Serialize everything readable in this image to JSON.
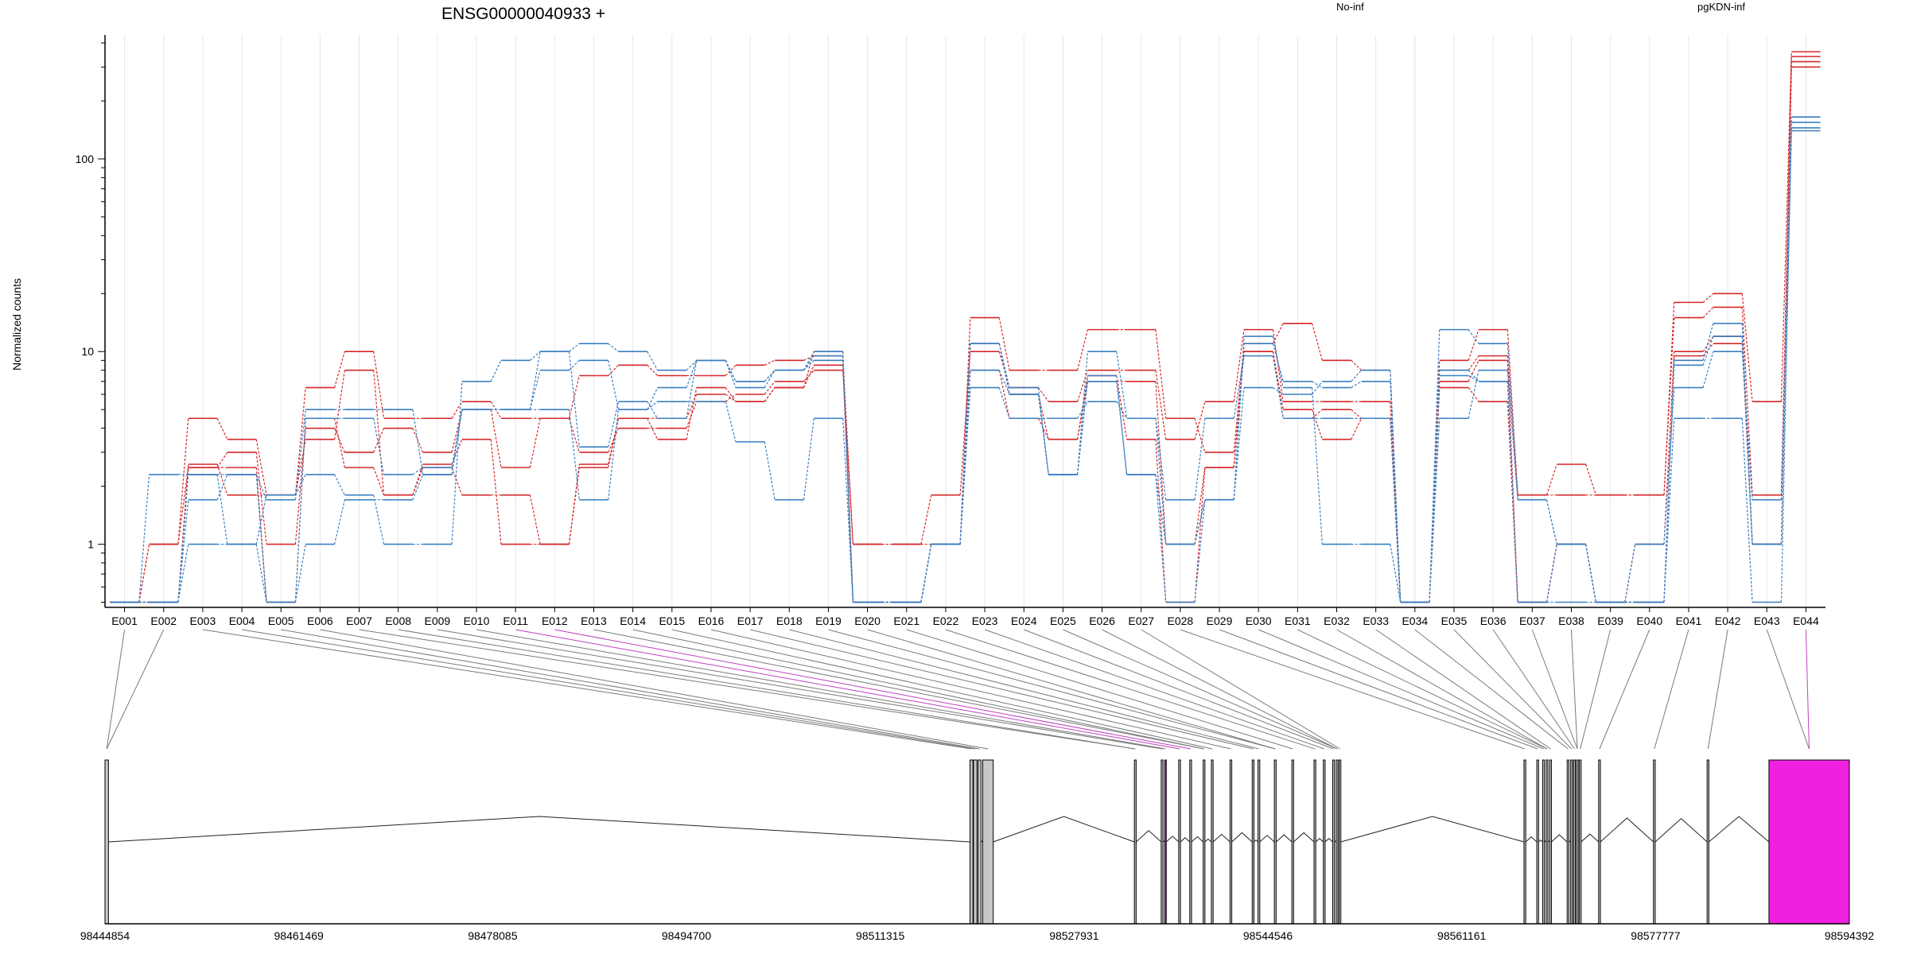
{
  "chart_data": {
    "type": "line",
    "title": "ENSG00000040933 +",
    "ylabel": "Normalized counts",
    "yscale": "log",
    "ylim": [
      0.47,
      440
    ],
    "y_ticks": [
      1,
      10,
      100
    ],
    "categories": [
      "E001",
      "E002",
      "E003",
      "E004",
      "E005",
      "E006",
      "E007",
      "E008",
      "E009",
      "E010",
      "E011",
      "E012",
      "E013",
      "E014",
      "E015",
      "E016",
      "E017",
      "E018",
      "E019",
      "E020",
      "E021",
      "E022",
      "E023",
      "E024",
      "E025",
      "E026",
      "E027",
      "E028",
      "E029",
      "E030",
      "E031",
      "E032",
      "E033",
      "E034",
      "E035",
      "E036",
      "E037",
      "E038",
      "E039",
      "E040",
      "E041",
      "E042",
      "E043",
      "E044"
    ],
    "legend": [
      {
        "label": "No-inf",
        "color": "#d62728"
      },
      {
        "label": "pgKDN-inf",
        "color": "#3a7fc1"
      }
    ],
    "series": [
      {
        "group": "No-inf",
        "color": "#d62728",
        "values": [
          0.5,
          1.0,
          2.5,
          3.0,
          1.0,
          4.0,
          3.0,
          4.0,
          3.0,
          5.0,
          2.5,
          4.5,
          3.0,
          4.0,
          4.0,
          5.5,
          6.0,
          7.0,
          8.0,
          1.0,
          1.0,
          1.0,
          15.0,
          8.0,
          8.0,
          13.0,
          13.0,
          4.5,
          3.0,
          11.0,
          14.0,
          9.0,
          8.0,
          0.5,
          9.0,
          13.0,
          1.8,
          1.8,
          1.8,
          1.8,
          18.0,
          20.0,
          5.5,
          360
        ]
      },
      {
        "group": "No-inf",
        "color": "#d62728",
        "values": [
          0.5,
          1.0,
          4.5,
          3.5,
          1.8,
          6.5,
          10.0,
          4.5,
          4.5,
          5.5,
          4.5,
          4.5,
          7.5,
          8.5,
          7.5,
          7.5,
          8.5,
          9.0,
          9.5,
          1.0,
          1.0,
          1.8,
          10.0,
          6.5,
          5.5,
          8.0,
          8.0,
          3.5,
          5.5,
          13.0,
          5.5,
          5.5,
          5.5,
          0.5,
          8.0,
          9.5,
          1.8,
          2.6,
          1.8,
          1.8,
          15.0,
          17.0,
          1.8,
          340
        ]
      },
      {
        "group": "No-inf",
        "color": "#d62728",
        "values": [
          0.5,
          0.5,
          2.6,
          1.8,
          1.8,
          3.5,
          8.0,
          1.8,
          2.6,
          3.5,
          1.0,
          1.0,
          2.5,
          4.5,
          3.5,
          6.5,
          5.5,
          6.5,
          8.5,
          0.5,
          0.5,
          1.0,
          8.0,
          4.5,
          3.5,
          7.5,
          3.5,
          0.5,
          2.5,
          10.0,
          5.0,
          3.5,
          4.5,
          0.5,
          6.5,
          5.5,
          0.5,
          1.0,
          0.5,
          1.0,
          10.0,
          12.0,
          1.0,
          320
        ]
      },
      {
        "group": "No-inf",
        "color": "#d62728",
        "values": [
          0.5,
          0.5,
          2.5,
          2.5,
          0.5,
          4.5,
          2.5,
          1.8,
          2.5,
          1.8,
          1.8,
          1.0,
          2.6,
          4.5,
          4.5,
          6.0,
          5.5,
          6.5,
          10.0,
          0.5,
          0.5,
          1.0,
          11.0,
          6.0,
          3.5,
          7.0,
          7.0,
          1.0,
          2.5,
          10.0,
          4.5,
          5.0,
          4.5,
          0.5,
          7.0,
          9.0,
          0.5,
          1.0,
          0.5,
          0.5,
          9.5,
          11.0,
          1.0,
          300
        ]
      },
      {
        "group": "pgKDN-inf",
        "color": "#3a7fc1",
        "values": [
          0.5,
          2.3,
          2.3,
          1.0,
          1.8,
          2.3,
          1.8,
          1.0,
          1.0,
          7.0,
          9.0,
          10.0,
          11.0,
          10.0,
          8.0,
          9.0,
          7.0,
          8.0,
          10.0,
          0.5,
          0.5,
          1.0,
          11.0,
          6.0,
          2.3,
          10.0,
          4.5,
          1.0,
          1.7,
          12.0,
          6.5,
          1.0,
          1.0,
          0.5,
          13.0,
          11.0,
          1.7,
          1.0,
          0.5,
          1.0,
          6.5,
          10.0,
          1.7,
          165
        ]
      },
      {
        "group": "pgKDN-inf",
        "color": "#3a7fc1",
        "values": [
          0.5,
          0.5,
          1.0,
          1.0,
          0.5,
          1.0,
          1.7,
          1.7,
          2.3,
          5.0,
          5.0,
          5.0,
          1.7,
          5.0,
          5.5,
          5.5,
          3.4,
          1.7,
          4.5,
          0.5,
          0.5,
          1.0,
          6.5,
          4.5,
          4.5,
          5.5,
          4.5,
          1.7,
          4.5,
          9.5,
          4.5,
          4.5,
          4.5,
          0.5,
          4.5,
          8.0,
          1.7,
          1.0,
          0.5,
          0.5,
          4.5,
          4.5,
          0.5,
          155
        ]
      },
      {
        "group": "pgKDN-inf",
        "color": "#3a7fc1",
        "values": [
          0.5,
          0.5,
          1.7,
          2.3,
          1.7,
          5.0,
          5.0,
          5.0,
          2.3,
          5.0,
          5.0,
          8.0,
          9.0,
          5.0,
          6.5,
          9.0,
          6.5,
          8.0,
          9.5,
          0.5,
          0.5,
          1.0,
          8.0,
          6.0,
          2.3,
          7.5,
          2.3,
          0.5,
          1.7,
          6.5,
          6.0,
          7.0,
          8.0,
          0.5,
          8.0,
          7.0,
          0.5,
          1.0,
          0.5,
          0.5,
          9.0,
          14.0,
          1.0,
          145
        ]
      },
      {
        "group": "pgKDN-inf",
        "color": "#3a7fc1",
        "values": [
          0.5,
          0.5,
          2.3,
          2.3,
          0.5,
          4.5,
          4.5,
          2.3,
          2.5,
          5.0,
          5.0,
          10.0,
          3.2,
          5.5,
          4.5,
          9.0,
          7.0,
          8.0,
          9.0,
          0.5,
          0.5,
          1.0,
          11.0,
          6.5,
          2.3,
          7.0,
          2.3,
          1.0,
          1.7,
          11.0,
          7.0,
          6.5,
          7.0,
          0.5,
          7.5,
          7.0,
          0.5,
          0.5,
          0.5,
          0.5,
          8.5,
          12.0,
          1.0,
          140
        ]
      }
    ],
    "gene_model": {
      "genomic_range": [
        98444854,
        98594392
      ],
      "x_ticks": [
        98444854,
        98461469,
        98478085,
        98494700,
        98511315,
        98527931,
        98544546,
        98561161,
        98577777,
        98594392
      ],
      "exons": [
        {
          "id": "E001",
          "start": 98444854,
          "end": 98445150,
          "color": "#c8c8c8"
        },
        {
          "id": "E002",
          "start": 98519010,
          "end": 98519260,
          "color": "#c8c8c8"
        },
        {
          "id": "E003",
          "start": 98519310,
          "end": 98519600,
          "color": "#c8c8c8"
        },
        {
          "id": "E004",
          "start": 98519700,
          "end": 98519950,
          "color": "#c8c8c8"
        },
        {
          "id": "E005",
          "start": 98520100,
          "end": 98521000,
          "color": "#c8c8c8"
        },
        {
          "id": "E006",
          "start": 98533100,
          "end": 98533250,
          "color": "#c8c8c8"
        },
        {
          "id": "E007",
          "start": 98535400,
          "end": 98535550,
          "color": "#c8c8c8"
        },
        {
          "id": "E008",
          "start": 98535700,
          "end": 98535830,
          "color": "#e600e6"
        },
        {
          "id": "E009",
          "start": 98536900,
          "end": 98537050,
          "color": "#c8c8c8"
        },
        {
          "id": "E010",
          "start": 98537850,
          "end": 98538000,
          "color": "#c8c8c8"
        },
        {
          "id": "E011",
          "start": 98539000,
          "end": 98539150,
          "color": "#c8c8c8"
        },
        {
          "id": "E012",
          "start": 98539700,
          "end": 98539850,
          "color": "#c8c8c8"
        },
        {
          "id": "E013",
          "start": 98541300,
          "end": 98541450,
          "color": "#c8c8c8"
        },
        {
          "id": "E014",
          "start": 98543200,
          "end": 98543350,
          "color": "#c8c8c8"
        },
        {
          "id": "E015",
          "start": 98543700,
          "end": 98543850,
          "color": "#c8c8c8"
        },
        {
          "id": "E016",
          "start": 98545100,
          "end": 98545250,
          "color": "#c8c8c8"
        },
        {
          "id": "E017",
          "start": 98546600,
          "end": 98546750,
          "color": "#c8c8c8"
        },
        {
          "id": "E018",
          "start": 98548500,
          "end": 98548650,
          "color": "#c8c8c8"
        },
        {
          "id": "E019",
          "start": 98549300,
          "end": 98549450,
          "color": "#c8c8c8"
        },
        {
          "id": "E020",
          "start": 98550100,
          "end": 98550250,
          "color": "#c8c8c8"
        },
        {
          "id": "E021",
          "start": 98550400,
          "end": 98550550,
          "color": "#c8c8c8"
        },
        {
          "id": "E022",
          "start": 98550650,
          "end": 98550800,
          "color": "#c8c8c8"
        },
        {
          "id": "E023",
          "start": 98566500,
          "end": 98566650,
          "color": "#c8c8c8"
        },
        {
          "id": "E024",
          "start": 98567600,
          "end": 98567750,
          "color": "#c8c8c8"
        },
        {
          "id": "E025",
          "start": 98568100,
          "end": 98568250,
          "color": "#c8c8c8"
        },
        {
          "id": "E026",
          "start": 98568400,
          "end": 98568550,
          "color": "#c8c8c8"
        },
        {
          "id": "E027",
          "start": 98568700,
          "end": 98568850,
          "color": "#c8c8c8"
        },
        {
          "id": "E028",
          "start": 98570200,
          "end": 98570350,
          "color": "#c8c8c8"
        },
        {
          "id": "E029",
          "start": 98570500,
          "end": 98570650,
          "color": "#c8c8c8"
        },
        {
          "id": "E030",
          "start": 98570750,
          "end": 98570900,
          "color": "#c8c8c8"
        },
        {
          "id": "E031",
          "start": 98571000,
          "end": 98571150,
          "color": "#c8c8c8"
        },
        {
          "id": "E032",
          "start": 98571250,
          "end": 98571400,
          "color": "#c8c8c8"
        },
        {
          "id": "E033",
          "start": 98572900,
          "end": 98573050,
          "color": "#c8c8c8"
        },
        {
          "id": "E034",
          "start": 98577600,
          "end": 98577750,
          "color": "#c8c8c8"
        },
        {
          "id": "E035",
          "start": 98582200,
          "end": 98582350,
          "color": "#c8c8c8"
        },
        {
          "id": "E036",
          "start": 98587500,
          "end": 98594392,
          "color": "#f020e0"
        }
      ]
    }
  }
}
